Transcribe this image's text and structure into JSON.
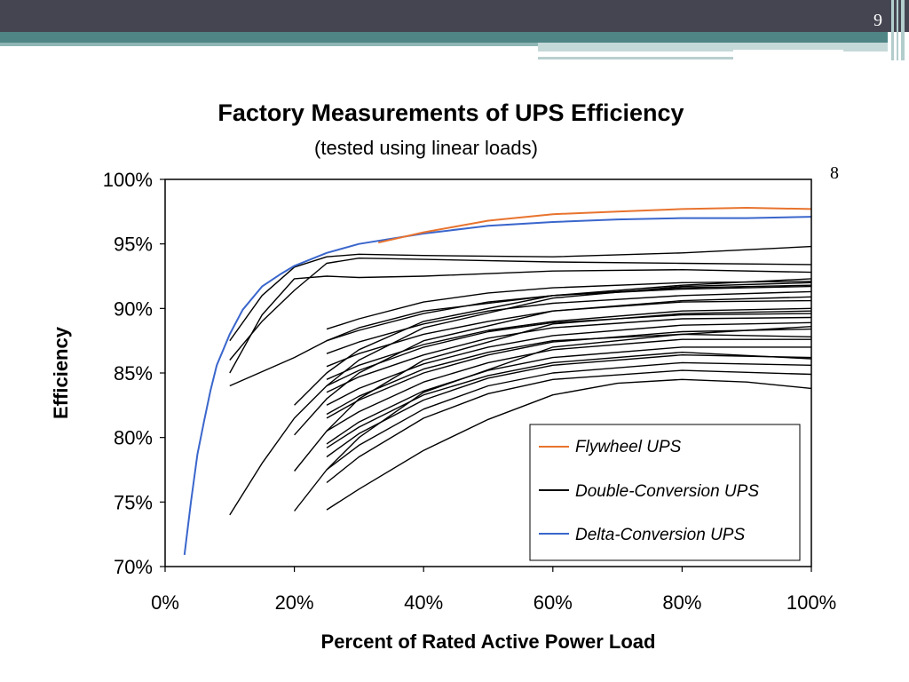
{
  "slide": {
    "number": "9",
    "page_marker": "8"
  },
  "chart_data": {
    "type": "line",
    "title": "Factory Measurements of UPS Efficiency",
    "subtitle": "(tested using linear loads)",
    "xlabel": "Percent of Rated Active Power Load",
    "ylabel": "Efficiency",
    "xlim": [
      0,
      100
    ],
    "ylim": [
      70,
      100
    ],
    "x_ticks": [
      "0%",
      "20%",
      "40%",
      "60%",
      "80%",
      "100%"
    ],
    "x_tick_values": [
      0,
      20,
      40,
      60,
      80,
      100
    ],
    "y_ticks": [
      "100%",
      "95%",
      "90%",
      "85%",
      "80%",
      "75%",
      "70%"
    ],
    "y_tick_values": [
      100,
      95,
      90,
      85,
      80,
      75,
      70
    ],
    "grid": false,
    "legend_position": "bottom-right",
    "legend": [
      {
        "label": "Flywheel UPS",
        "color": "#e8732e"
      },
      {
        "label": "Double-Conversion UPS",
        "color": "#000000"
      },
      {
        "label": "Delta-Conversion UPS",
        "color": "#3a66cc"
      }
    ],
    "series": [
      {
        "name": "Flywheel UPS",
        "group": "flywheel",
        "color": "#e8732e",
        "x": [
          33,
          40,
          50,
          60,
          70,
          80,
          90,
          100
        ],
        "y": [
          95.1,
          95.9,
          96.8,
          97.3,
          97.5,
          97.7,
          97.8,
          97.7
        ]
      },
      {
        "name": "Delta-Conversion UPS",
        "group": "delta",
        "color": "#3a66cc",
        "x": [
          3,
          4,
          5,
          6,
          7,
          8,
          10,
          12,
          15,
          18,
          20,
          25,
          30,
          40,
          50,
          60,
          70,
          80,
          90,
          100
        ],
        "y": [
          70.9,
          75.0,
          78.7,
          81.2,
          83.6,
          85.6,
          88.0,
          89.9,
          91.7,
          92.7,
          93.3,
          94.3,
          95.0,
          95.8,
          96.4,
          96.7,
          96.9,
          97.0,
          97.0,
          97.1
        ]
      },
      {
        "group": "double",
        "color": "#000000",
        "x": [
          10,
          15,
          20,
          25,
          30,
          40,
          60,
          80,
          100
        ],
        "y": [
          87.5,
          91.0,
          93.2,
          94.0,
          94.2,
          94.1,
          94.0,
          94.3,
          94.8
        ]
      },
      {
        "group": "double",
        "color": "#000000",
        "x": [
          10,
          15,
          20,
          25,
          30,
          40,
          60,
          80,
          100
        ],
        "y": [
          85.0,
          89.5,
          92.3,
          92.5,
          92.4,
          92.5,
          92.9,
          93.0,
          92.8
        ]
      },
      {
        "group": "double",
        "color": "#000000",
        "x": [
          10,
          15,
          20,
          25,
          30,
          40,
          60,
          80,
          100
        ],
        "y": [
          86.0,
          89.0,
          91.4,
          93.5,
          93.9,
          93.8,
          93.6,
          93.5,
          93.4
        ]
      },
      {
        "group": "double",
        "color": "#000000",
        "x": [
          10,
          20,
          25,
          30,
          40,
          60,
          80,
          100
        ],
        "y": [
          84.0,
          86.2,
          87.5,
          88.5,
          89.8,
          91.0,
          91.6,
          91.8
        ]
      },
      {
        "group": "double",
        "color": "#000000",
        "x": [
          10,
          15,
          20,
          25,
          30,
          40,
          60,
          80,
          100
        ],
        "y": [
          74.0,
          78.0,
          81.5,
          84.0,
          86.0,
          88.5,
          90.8,
          91.7,
          92.0
        ]
      },
      {
        "group": "double",
        "color": "#000000",
        "x": [
          20,
          25,
          30,
          40,
          60,
          80,
          100
        ],
        "y": [
          82.5,
          85.0,
          86.8,
          89.0,
          91.0,
          91.8,
          92.3
        ]
      },
      {
        "group": "double",
        "color": "#000000",
        "x": [
          20,
          25,
          30,
          40,
          60,
          80,
          100
        ],
        "y": [
          80.2,
          83.0,
          85.0,
          87.5,
          89.8,
          90.5,
          90.6
        ]
      },
      {
        "group": "double",
        "color": "#000000",
        "x": [
          20,
          25,
          30,
          40,
          60,
          80,
          100
        ],
        "y": [
          77.4,
          80.5,
          83.0,
          86.0,
          88.8,
          89.6,
          89.8
        ]
      },
      {
        "group": "double",
        "color": "#000000",
        "x": [
          20,
          25,
          30,
          40,
          60,
          80,
          100
        ],
        "y": [
          74.3,
          77.5,
          80.0,
          83.5,
          87.0,
          88.0,
          88.6
        ]
      },
      {
        "group": "double",
        "color": "#000000",
        "x": [
          25,
          30,
          40,
          50,
          60,
          80,
          100
        ],
        "y": [
          88.4,
          89.2,
          90.5,
          91.2,
          91.6,
          92.0,
          92.1
        ]
      },
      {
        "group": "double",
        "color": "#000000",
        "x": [
          25,
          30,
          40,
          50,
          60,
          80,
          100
        ],
        "y": [
          87.5,
          88.3,
          89.6,
          90.5,
          91.0,
          91.5,
          91.7
        ]
      },
      {
        "group": "double",
        "color": "#000000",
        "x": [
          25,
          30,
          40,
          50,
          60,
          80,
          100
        ],
        "y": [
          86.5,
          87.4,
          88.8,
          89.8,
          90.4,
          91.0,
          91.3
        ]
      },
      {
        "group": "double",
        "color": "#000000",
        "x": [
          25,
          30,
          40,
          50,
          60,
          80,
          100
        ],
        "y": [
          85.5,
          86.5,
          88.0,
          89.0,
          89.8,
          90.6,
          90.9
        ]
      },
      {
        "group": "double",
        "color": "#000000",
        "x": [
          25,
          30,
          40,
          50,
          60,
          80,
          100
        ],
        "y": [
          84.5,
          85.6,
          87.2,
          88.3,
          89.0,
          89.8,
          90.0
        ]
      },
      {
        "group": "double",
        "color": "#000000",
        "x": [
          25,
          30,
          40,
          50,
          60,
          80,
          100
        ],
        "y": [
          83.5,
          84.7,
          86.4,
          87.7,
          88.5,
          89.2,
          89.3
        ]
      },
      {
        "group": "double",
        "color": "#000000",
        "x": [
          25,
          30,
          40,
          50,
          60,
          80,
          100
        ],
        "y": [
          82.5,
          83.8,
          85.7,
          87.0,
          87.9,
          88.7,
          88.9
        ]
      },
      {
        "group": "double",
        "color": "#000000",
        "x": [
          25,
          30,
          40,
          50,
          60,
          80,
          100
        ],
        "y": [
          81.5,
          82.9,
          85.0,
          86.4,
          87.4,
          88.2,
          88.4
        ]
      },
      {
        "group": "double",
        "color": "#000000",
        "x": [
          25,
          30,
          40,
          50,
          60,
          80,
          100
        ],
        "y": [
          80.5,
          82.0,
          84.3,
          85.8,
          86.8,
          87.6,
          87.6
        ]
      },
      {
        "group": "double",
        "color": "#000000",
        "x": [
          25,
          30,
          40,
          50,
          60,
          80,
          100
        ],
        "y": [
          79.5,
          81.2,
          83.6,
          85.2,
          86.2,
          87.0,
          87.0
        ]
      },
      {
        "group": "double",
        "color": "#000000",
        "x": [
          25,
          30,
          40,
          50,
          60,
          80,
          100
        ],
        "y": [
          78.5,
          80.3,
          82.9,
          84.6,
          85.6,
          86.4,
          86.2
        ]
      },
      {
        "group": "double",
        "color": "#000000",
        "x": [
          25,
          30,
          40,
          50,
          60,
          80,
          100
        ],
        "y": [
          77.5,
          79.4,
          82.2,
          84.0,
          85.0,
          85.8,
          85.6
        ]
      },
      {
        "group": "double",
        "color": "#000000",
        "x": [
          25,
          30,
          40,
          50,
          60,
          80,
          100
        ],
        "y": [
          76.5,
          78.5,
          81.5,
          83.4,
          84.5,
          85.2,
          84.9
        ]
      },
      {
        "group": "double",
        "color": "#000000",
        "x": [
          25,
          30,
          40,
          50,
          60,
          70,
          80,
          90,
          100
        ],
        "y": [
          74.4,
          76.0,
          79.0,
          81.4,
          83.3,
          84.2,
          84.5,
          84.3,
          83.8
        ]
      },
      {
        "group": "double",
        "color": "#000000",
        "x": [
          25,
          30,
          40,
          50,
          60,
          80,
          100
        ],
        "y": [
          84.0,
          85.2,
          87.0,
          88.2,
          88.9,
          89.5,
          89.6
        ]
      },
      {
        "group": "double",
        "color": "#000000",
        "x": [
          25,
          30,
          40,
          50,
          60,
          80,
          100
        ],
        "y": [
          81.8,
          83.2,
          85.3,
          86.6,
          87.5,
          88.0,
          87.8
        ]
      },
      {
        "group": "double",
        "color": "#000000",
        "x": [
          25,
          30,
          40,
          50,
          60,
          80,
          100
        ],
        "y": [
          79.2,
          80.8,
          83.3,
          84.8,
          85.8,
          86.6,
          86.1
        ]
      }
    ]
  }
}
